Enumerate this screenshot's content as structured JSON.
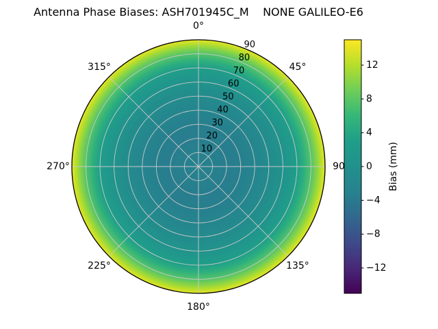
{
  "title": "Antenna Phase Biases: ASH701945C_M    NONE GALILEO-E6",
  "chart_data": {
    "type": "heatmap",
    "projection": "polar",
    "title": "Antenna Phase Biases: ASH701945C_M    NONE GALILEO-E6",
    "theta_zero_location": "top",
    "theta_direction": "clockwise",
    "theta_ticks": [
      "0°",
      "45°",
      "90",
      "135°",
      "180°",
      "225°",
      "270°",
      "315°"
    ],
    "r_ticks": [
      10,
      20,
      30,
      40,
      50,
      60,
      70,
      80,
      90
    ],
    "rlim": [
      0,
      90
    ],
    "r_label_angle_deg": 22.5,
    "grid": true,
    "grid_color": "#c9c9c9",
    "colorbar": {
      "label": "Bias (mm)",
      "ticks": [
        -12,
        -8,
        -4,
        0,
        4,
        8,
        12
      ],
      "vmin": -15,
      "vmax": 15,
      "colormap": "viridis"
    },
    "radial_profile": {
      "description": "azimuthally symmetric bias (mm) vs zenith angle (deg); center = zenith, edge = horizon",
      "zenith_deg": [
        0,
        10,
        20,
        30,
        40,
        50,
        55,
        60,
        65,
        70,
        75,
        80,
        84,
        87,
        90
      ],
      "bias_mm": [
        -3,
        -3.2,
        -3.5,
        -3.3,
        -2.5,
        -1.3,
        -0.5,
        0.5,
        1.5,
        3,
        5,
        7.5,
        10,
        12,
        14
      ]
    },
    "colormap_anchors": [
      "#440154",
      "#482878",
      "#3e4a89",
      "#31688e",
      "#26828e",
      "#21918c",
      "#1f9e89",
      "#35b779",
      "#6ece58",
      "#b5de2b",
      "#fde725"
    ]
  }
}
